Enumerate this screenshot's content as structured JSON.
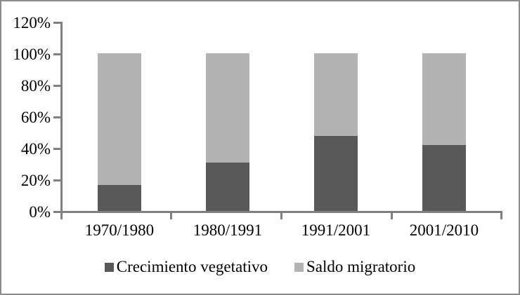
{
  "chart_data": {
    "type": "bar",
    "variant": "stacked-100-percent",
    "title": "",
    "xlabel": "",
    "ylabel": "",
    "categories": [
      "1970/1980",
      "1980/1991",
      "1991/2001",
      "2001/2010"
    ],
    "series": [
      {
        "name": "Crecimiento vegetativo",
        "color": "#595959",
        "values": [
          17,
          31,
          48,
          42
        ]
      },
      {
        "name": "Saldo migratorio",
        "color": "#b3b3b3",
        "values": [
          83,
          69,
          52,
          58
        ]
      }
    ],
    "ylim": [
      0,
      120
    ],
    "ytick_labels": [
      "120%",
      "100%",
      "80%",
      "60%",
      "40%",
      "20%",
      "0%"
    ],
    "grid": false,
    "legend_position": "bottom"
  },
  "styles": {
    "axis_color": "#808080",
    "text_color": "#000000",
    "frame_border_color": "#8c8c8c",
    "background": "#ffffff",
    "dark_series_color": "#595959",
    "light_series_color": "#b3b3b3"
  }
}
